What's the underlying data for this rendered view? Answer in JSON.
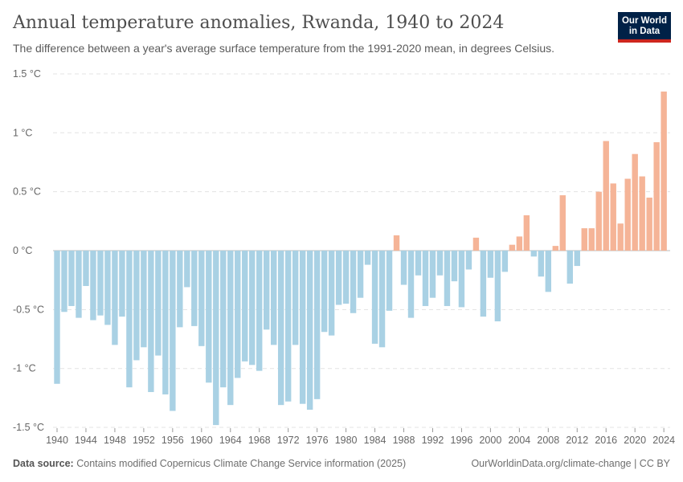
{
  "header": {
    "title": "Annual temperature anomalies, Rwanda, 1940 to 2024",
    "subtitle": "The difference between a year's average surface temperature from the 1991-2020 mean, in degrees Celsius.",
    "logo": "Our World in Data"
  },
  "footer": {
    "source_label": "Data source:",
    "source_text": "Contains modified Copernicus Climate Change Service information (2025)",
    "link": "OurWorldinData.org/climate-change | CC BY"
  },
  "colors": {
    "negative": "#a9d1e4",
    "positive": "#f5b497"
  },
  "chart_data": {
    "type": "bar",
    "title": "Annual temperature anomalies, Rwanda, 1940 to 2024",
    "ylabel": "°C",
    "ylim": [
      -1.5,
      1.5
    ],
    "y_ticks": [
      "1.5 °C",
      "1 °C",
      "0.5 °C",
      "0 °C",
      "-0.5 °C",
      "-1 °C",
      "-1.5 °C"
    ],
    "y_tick_values": [
      1.5,
      1,
      0.5,
      0,
      -0.5,
      -1,
      -1.5
    ],
    "x_ticks": [
      "1940",
      "1944",
      "1948",
      "1952",
      "1956",
      "1960",
      "1964",
      "1968",
      "1972",
      "1976",
      "1980",
      "1984",
      "1988",
      "1992",
      "1996",
      "2000",
      "2004",
      "2008",
      "2012",
      "2016",
      "2020",
      "2024"
    ],
    "start_year": 1940,
    "values": [
      -1.13,
      -0.52,
      -0.47,
      -0.57,
      -0.3,
      -0.59,
      -0.55,
      -0.63,
      -0.8,
      -0.56,
      -1.16,
      -0.93,
      -0.82,
      -1.2,
      -0.89,
      -1.22,
      -1.36,
      -0.65,
      -0.31,
      -0.64,
      -0.81,
      -1.12,
      -1.48,
      -1.16,
      -1.31,
      -1.08,
      -0.94,
      -0.97,
      -1.02,
      -0.67,
      -0.8,
      -1.31,
      -1.28,
      -0.8,
      -1.3,
      -1.35,
      -1.26,
      -0.69,
      -0.72,
      -0.46,
      -0.45,
      -0.53,
      -0.4,
      -0.12,
      -0.79,
      -0.82,
      -0.51,
      0.13,
      -0.29,
      -0.57,
      -0.21,
      -0.47,
      -0.4,
      -0.21,
      -0.47,
      -0.26,
      -0.48,
      -0.16,
      0.11,
      -0.56,
      -0.23,
      -0.6,
      -0.18,
      0.05,
      0.12,
      0.3,
      -0.05,
      -0.22,
      -0.35,
      0.04,
      0.47,
      -0.28,
      -0.13,
      0.19,
      0.19,
      0.5,
      0.93,
      0.57,
      0.23,
      0.61,
      0.82,
      0.63,
      0.45,
      0.92,
      1.35
    ]
  }
}
